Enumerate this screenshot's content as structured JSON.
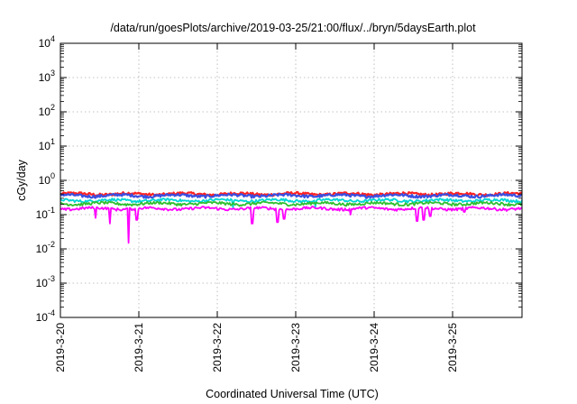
{
  "chart_data": {
    "type": "line",
    "title": "/data/run/goesPlots/archive/2019-03-25/21:00/flux/../bryn/5daysEarth.plot",
    "xlabel": "Coordinated Universal Time (UTC)",
    "ylabel": "cGy/day",
    "yscale": "log",
    "ylim": [
      0.0001,
      10000
    ],
    "xlim": [
      "2019-03-20 00:00",
      "2019-03-25 21:00"
    ],
    "grid": true,
    "legend": "none",
    "x_ticks": [
      "2019-3-20",
      "2019-3-21",
      "2019-3-22",
      "2019-3-23",
      "2019-3-24",
      "2019-3-25"
    ],
    "y_ticks": [
      {
        "value": 0.0001,
        "base": "10",
        "exp": "-4"
      },
      {
        "value": 0.001,
        "base": "10",
        "exp": "-3"
      },
      {
        "value": 0.01,
        "base": "10",
        "exp": "-2"
      },
      {
        "value": 0.1,
        "base": "10",
        "exp": "-1"
      },
      {
        "value": 1,
        "base": "10",
        "exp": "0"
      },
      {
        "value": 10,
        "base": "10",
        "exp": "1"
      },
      {
        "value": 100,
        "base": "10",
        "exp": "2"
      },
      {
        "value": 1000,
        "base": "10",
        "exp": "3"
      },
      {
        "value": 10000,
        "base": "10",
        "exp": "4"
      }
    ],
    "series": [
      {
        "color": "#ff2020",
        "base": 0.4,
        "dips": []
      },
      {
        "color": "#3a4fe0",
        "base": 0.36,
        "dips": []
      },
      {
        "color": "#00d5d5",
        "base": 0.26,
        "dips": [
          [
            2.2,
            0.16
          ],
          [
            3.25,
            0.17
          ]
        ]
      },
      {
        "color": "#30c030",
        "base": 0.21,
        "dips": []
      },
      {
        "color": "#ff00ff",
        "base": 0.15,
        "dips": [
          [
            0.45,
            0.08
          ],
          [
            0.63,
            0.055
          ],
          [
            0.87,
            0.015
          ],
          [
            0.97,
            0.07
          ],
          [
            2.45,
            0.055
          ],
          [
            2.77,
            0.06
          ],
          [
            2.85,
            0.075
          ],
          [
            3.7,
            0.1
          ],
          [
            4.55,
            0.065
          ],
          [
            4.63,
            0.07
          ],
          [
            4.72,
            0.09
          ],
          [
            5.15,
            0.12
          ]
        ]
      }
    ]
  }
}
